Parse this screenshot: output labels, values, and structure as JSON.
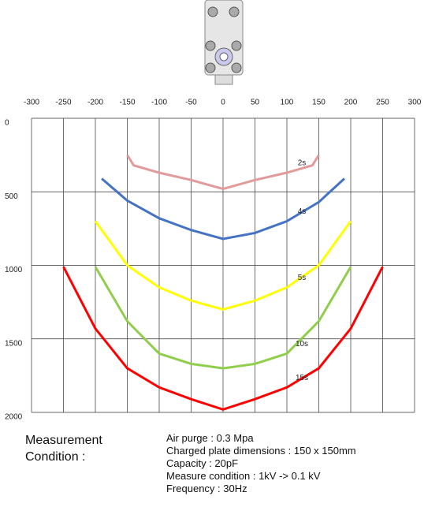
{
  "chart_data": {
    "type": "line",
    "xlim": [
      -300,
      300
    ],
    "xticks": [
      -300,
      -250,
      -200,
      -150,
      -100,
      -50,
      0,
      50,
      100,
      150,
      200,
      250,
      300
    ],
    "ylim": [
      0,
      2000
    ],
    "yticks": [
      0,
      500,
      1000,
      1500,
      2000
    ],
    "y_inverted": true,
    "grid": true,
    "series": [
      {
        "name": "2s",
        "color": "#e29a9a",
        "x": [
          -150,
          -140,
          -100,
          -50,
          0,
          50,
          100,
          140,
          150
        ],
        "values": [
          250,
          320,
          370,
          420,
          480,
          420,
          370,
          320,
          250
        ]
      },
      {
        "name": "4s",
        "color": "#4472c4",
        "x": [
          -190,
          -150,
          -100,
          -50,
          0,
          50,
          100,
          150,
          190
        ],
        "values": [
          410,
          560,
          680,
          760,
          820,
          780,
          700,
          570,
          410
        ]
      },
      {
        "name": "5s",
        "color": "#ffff00",
        "x": [
          -200,
          -150,
          -100,
          -50,
          0,
          50,
          100,
          150,
          200
        ],
        "values": [
          700,
          1000,
          1150,
          1240,
          1300,
          1240,
          1150,
          1000,
          700
        ]
      },
      {
        "name": "10s",
        "color": "#8fce4a",
        "x": [
          -200,
          -150,
          -100,
          -50,
          0,
          50,
          100,
          150,
          200
        ],
        "values": [
          1010,
          1380,
          1600,
          1670,
          1700,
          1670,
          1600,
          1380,
          1010
        ]
      },
      {
        "name": "15s",
        "color": "#ff0000",
        "x": [
          -250,
          -200,
          -150,
          -100,
          -50,
          0,
          50,
          100,
          150,
          200,
          250
        ],
        "values": [
          1010,
          1430,
          1700,
          1830,
          1910,
          1980,
          1910,
          1830,
          1700,
          1430,
          1010
        ]
      }
    ]
  },
  "conditions": {
    "label_1": "Measurement",
    "label_2": "Condition :",
    "lines": [
      "Air purge : 0.3 Mpa",
      "Charged plate dimensions : 150 x 150mm",
      "Capacity : 20pF",
      "Measure condition : 1kV -> 0.1 kV",
      "Frequency : 30Hz"
    ]
  }
}
